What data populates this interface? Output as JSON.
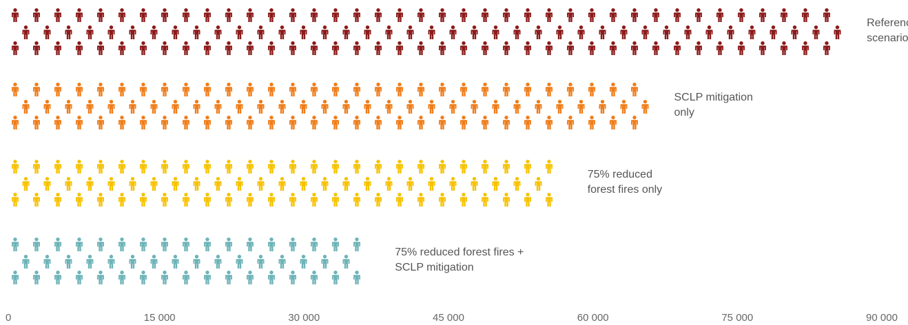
{
  "chart_data": {
    "type": "bar",
    "orientation": "horizontal",
    "mark": "pictogram-person",
    "series": [
      {
        "label_lines": [
          "Reference",
          "scenario"
        ],
        "value": 86000,
        "color": "#8b1a1a"
      },
      {
        "label_lines": [
          "SCLP mitigation",
          "only"
        ],
        "value": 66000,
        "color": "#ef7d1a"
      },
      {
        "label_lines": [
          "75% reduced",
          "forest fires only"
        ],
        "value": 57000,
        "color": "#f7c200"
      },
      {
        "label_lines": [
          "75% reduced forest fires +",
          "SCLP mitigation"
        ],
        "value": 37000,
        "color": "#6db3b8"
      }
    ],
    "x_ticks": [
      "0",
      "15 000",
      "30 000",
      "45 000",
      "60 000",
      "75 000",
      "90 000"
    ],
    "x_tick_values": [
      0,
      15000,
      30000,
      45000,
      60000,
      75000,
      90000
    ],
    "xlim": [
      0,
      90000
    ],
    "grid": false,
    "legend": "none"
  }
}
